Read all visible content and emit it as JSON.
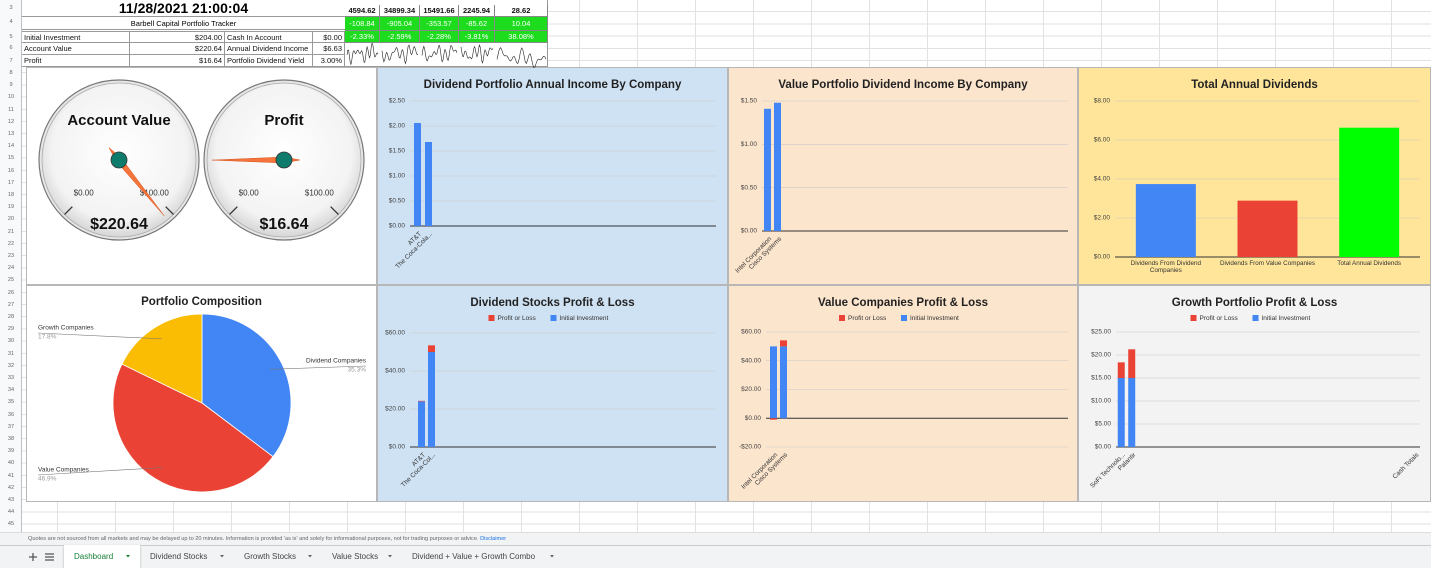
{
  "sheet": {
    "row_numbers": [
      3,
      4,
      5,
      6,
      7,
      8,
      9,
      10,
      11,
      12,
      13,
      14,
      15,
      16,
      17,
      18,
      19,
      20,
      21,
      22,
      23,
      24,
      25,
      26,
      27,
      28,
      29,
      30,
      31,
      32,
      33,
      34,
      35,
      36,
      37,
      38,
      39,
      40,
      41,
      42,
      43,
      44,
      45
    ],
    "timestamp": "11/28/2021 21:00:04",
    "tracker_title": "Barbell Capital Portfolio Tracker",
    "summary": [
      [
        "Initial Investment",
        "$204.00",
        "Cash In Account",
        "$0.00"
      ],
      [
        "Account Value",
        "$220.64",
        "Annual Dividend Income",
        "$6.63"
      ],
      [
        "Profit",
        "$16.64",
        "Portfolio Dividend Yield",
        "3.00%"
      ]
    ],
    "indices": [
      [
        "4594.62",
        "34899.34",
        "15491.66",
        "2245.94",
        "28.62"
      ],
      [
        "-108.84",
        "-905.04",
        "-353.57",
        "-85.62",
        "10.04"
      ],
      [
        "-2.33%",
        "-2.59%",
        "-2.28%",
        "-3.81%",
        "38.08%"
      ]
    ],
    "footer": {
      "text": "Quotes are not sourced from all markets and may be delayed up to 20 minutes. Information is provided 'as is' and solely for informational purposes, not for trading purposes or advice.",
      "link": "Disclaimer"
    },
    "tabs": [
      "Dashboard",
      "Dividend Stocks",
      "Growth Stocks",
      "Value Stocks",
      "Dividend + Value + Growth Combo"
    ]
  },
  "chart_data": [
    {
      "type": "gauge",
      "title": "Account Value",
      "value": 220.64,
      "value_label": "$220.64",
      "range": [
        0,
        100
      ],
      "ticks": [
        {
          "value": 0,
          "label": "$0.00"
        },
        {
          "value": 100,
          "label": "$100.00"
        }
      ]
    },
    {
      "type": "gauge",
      "title": "Profit",
      "value": 16.64,
      "value_label": "$16.64",
      "range": [
        0,
        100
      ],
      "ticks": [
        {
          "value": 0,
          "label": "$0.00"
        },
        {
          "value": 100,
          "label": "$100.00"
        }
      ]
    },
    {
      "type": "bar",
      "title": "Dividend Portfolio Annual Income By Company",
      "categories": [
        "AT&T",
        "The Coca-Cola..."
      ],
      "values": [
        2.06,
        1.68
      ],
      "color": "#4285f4",
      "ylim": [
        0,
        2.5
      ],
      "yticks": [
        {
          "value": 0,
          "label": "$0.00"
        },
        {
          "value": 0.5,
          "label": "$0.50"
        },
        {
          "value": 1,
          "label": "$1.00"
        },
        {
          "value": 1.5,
          "label": "$1.50"
        },
        {
          "value": 2,
          "label": "$2.00"
        },
        {
          "value": 2.5,
          "label": "$2.50"
        }
      ],
      "grid": true
    },
    {
      "type": "bar",
      "title": "Value Portfolio Dividend Income By Company",
      "categories": [
        "Intel Corporation",
        "Cisco Systems"
      ],
      "values": [
        1.41,
        1.48
      ],
      "color": "#4285f4",
      "ylim": [
        0,
        1.5
      ],
      "yticks": [
        {
          "value": 0,
          "label": "$0.00"
        },
        {
          "value": 0.5,
          "label": "$0.50"
        },
        {
          "value": 1,
          "label": "$1.00"
        },
        {
          "value": 1.5,
          "label": "$1.50"
        }
      ],
      "grid": true
    },
    {
      "type": "bar",
      "title": "Total Annual Dividends",
      "categories": [
        "Dividends From Dividend Companies",
        "Dividends From Value Companies",
        "Total Annual Dividends"
      ],
      "values": [
        3.74,
        2.89,
        6.63
      ],
      "colors": [
        "#4285f4",
        "#ea4335",
        "#00ff00"
      ],
      "ylim": [
        0,
        8
      ],
      "yticks": [
        {
          "value": 0,
          "label": "$0.00"
        },
        {
          "value": 2,
          "label": "$2.00"
        },
        {
          "value": 4,
          "label": "$4.00"
        },
        {
          "value": 6,
          "label": "$6.00"
        },
        {
          "value": 8,
          "label": "$8.00"
        }
      ],
      "grid": true
    },
    {
      "type": "pie",
      "title": "Portfolio Composition",
      "categories": [
        "Dividend Companies",
        "Value Companies",
        "Growth Companies"
      ],
      "values": [
        35.3,
        46.9,
        17.8
      ],
      "value_labels": [
        "35.3%",
        "46.9%",
        "17.8%"
      ],
      "colors": [
        "#4285f4",
        "#ea4335",
        "#fbbc04"
      ]
    },
    {
      "type": "stacked_bar",
      "title": "Dividend Stocks Profit & Loss",
      "categories": [
        "AT&T",
        "The Coca-Col..."
      ],
      "series": [
        {
          "name": "Profit or Loss",
          "color": "#ea4335",
          "values": [
            0.3,
            3.5
          ]
        },
        {
          "name": "Initial Investment",
          "color": "#4285f4",
          "values": [
            24,
            50
          ]
        }
      ],
      "ylim": [
        0,
        60
      ],
      "yticks": [
        {
          "value": 0,
          "label": "$0.00"
        },
        {
          "value": 20,
          "label": "$20.00"
        },
        {
          "value": 40,
          "label": "$40.00"
        },
        {
          "value": 60,
          "label": "$60.00"
        }
      ],
      "grid": true
    },
    {
      "type": "stacked_bar",
      "title": "Value Companies Profit & Loss",
      "categories": [
        "Intel Corporation",
        "Cisco Systems"
      ],
      "series": [
        {
          "name": "Profit or Loss",
          "color": "#ea4335",
          "values": [
            -1.0,
            4.2
          ]
        },
        {
          "name": "Initial Investment",
          "color": "#4285f4",
          "values": [
            50,
            50
          ]
        }
      ],
      "ylim": [
        -20,
        60
      ],
      "yticks": [
        {
          "value": -20,
          "label": "-$20.00"
        },
        {
          "value": 0,
          "label": "$0.00"
        },
        {
          "value": 20,
          "label": "$20.00"
        },
        {
          "value": 40,
          "label": "$40.00"
        },
        {
          "value": 60,
          "label": "$60.00"
        }
      ],
      "grid": true
    },
    {
      "type": "stacked_bar",
      "title": "Growth Portfolio Profit & Loss",
      "categories": [
        "SoFi Technolo...",
        "Palantir",
        null,
        null,
        null,
        null,
        null,
        null,
        null,
        null,
        null,
        null,
        null,
        null,
        null,
        null,
        null,
        null,
        null,
        null,
        null,
        null,
        null,
        null,
        null,
        null,
        null,
        null,
        "Cash Totals"
      ],
      "series": [
        {
          "name": "Profit or Loss",
          "color": "#ea4335",
          "values": [
            3.4,
            6.24,
            null,
            null,
            null,
            null,
            null,
            null,
            null,
            null,
            null,
            null,
            null,
            null,
            null,
            null,
            null,
            null,
            null,
            null,
            null,
            null,
            null,
            null,
            null,
            null,
            null,
            null,
            0
          ]
        },
        {
          "name": "Initial Investment",
          "color": "#4285f4",
          "values": [
            15,
            15,
            null,
            null,
            null,
            null,
            null,
            null,
            null,
            null,
            null,
            null,
            null,
            null,
            null,
            null,
            null,
            null,
            null,
            null,
            null,
            null,
            null,
            null,
            null,
            null,
            null,
            null,
            0
          ]
        }
      ],
      "ylim": [
        0,
        25
      ],
      "yticks": [
        {
          "value": 0,
          "label": "$0.00"
        },
        {
          "value": 5,
          "label": "$5.00"
        },
        {
          "value": 10,
          "label": "$10.00"
        },
        {
          "value": 15,
          "label": "$15.00"
        },
        {
          "value": 20,
          "label": "$20.00"
        },
        {
          "value": 25,
          "label": "$25.00"
        }
      ],
      "grid": true
    }
  ]
}
